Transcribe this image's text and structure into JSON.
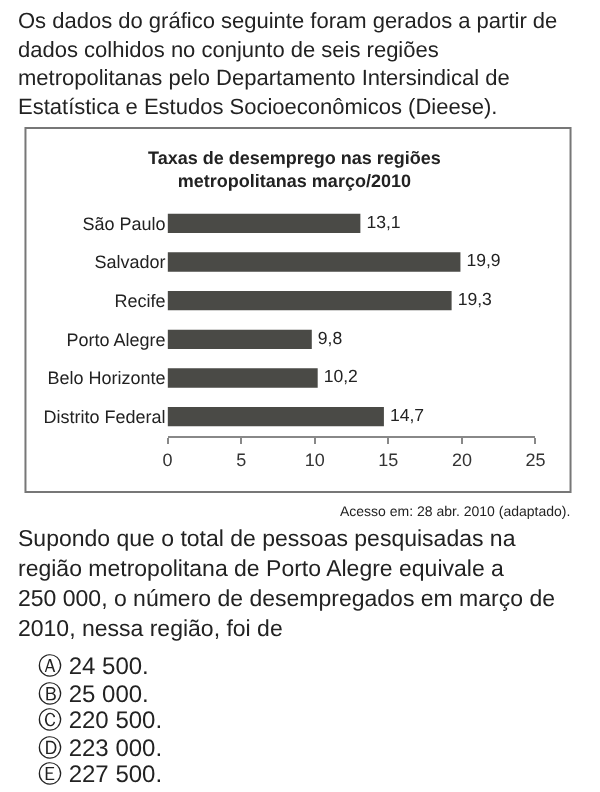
{
  "chart_data": {
    "type": "bar",
    "orientation": "horizontal",
    "title": "Taxas de desemprego nas regiões metropolitanas março/2010",
    "categories": [
      "São Paulo",
      "Salvador",
      "Recife",
      "Porto Alegre",
      "Belo Horizonte",
      "Distrito Federal"
    ],
    "values": [
      13.1,
      19.9,
      19.3,
      9.8,
      10.2,
      14.7
    ],
    "value_labels": [
      "13,1",
      "19,9",
      "19,3",
      "9,8",
      "10,2",
      "14,7"
    ],
    "color": "#4a4a46",
    "xlim": [
      0,
      25
    ],
    "xticks": [
      0,
      5,
      10,
      15,
      20,
      25
    ],
    "annotations": [
      "Os dados do gráfico seguinte foram gerados a partir de dados colhidos no conjunto de seis regiões metropolitanas pelo Departamento Intersindical de Estatística e Estudos Socioeconômicos (Dieese).",
      "Acesso em: 28 abr. 2010 (adaptado).",
      "Supondo que o total de pessoas pesquisadas na região metropolitana de Porto Alegre equivale a 250 000, o número de desempregados em março de 2010, nessa região, foi de",
      "Ⓐ 24 500.",
      "Ⓑ 25 000.",
      "Ⓒ 220 500.",
      "Ⓓ 223 000.",
      "Ⓔ 227 500."
    ]
  }
}
